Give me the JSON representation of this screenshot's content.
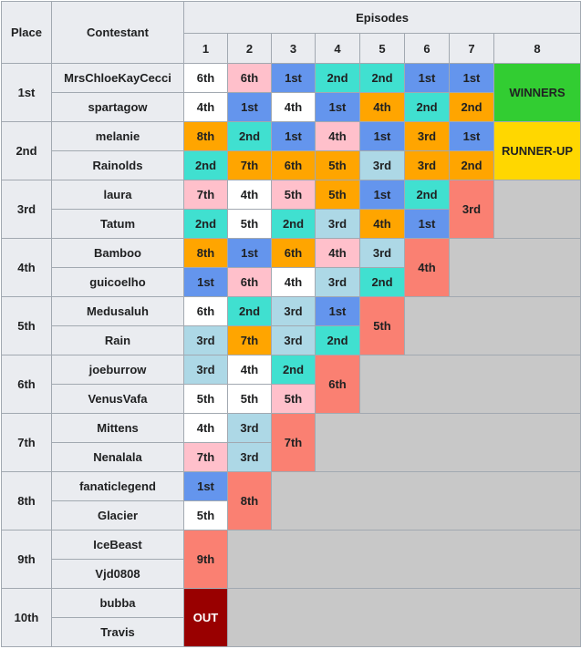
{
  "header": {
    "place": "Place",
    "contestant": "Contestant",
    "episodes": "Episodes",
    "episode_numbers": [
      "1",
      "2",
      "3",
      "4",
      "5",
      "6",
      "7",
      "8"
    ]
  },
  "groups": [
    {
      "place": "1st",
      "contestants": [
        {
          "name": "MrsChloeKayCecci",
          "results": [
            {
              "label": "6th",
              "color": "#ffffff"
            },
            {
              "label": "6th",
              "color": "#ffc0cb"
            },
            {
              "label": "1st",
              "color": "#6495ed"
            },
            {
              "label": "2nd",
              "color": "#40e0d0"
            },
            {
              "label": "2nd",
              "color": "#40e0d0"
            },
            {
              "label": "1st",
              "color": "#6495ed"
            },
            {
              "label": "1st",
              "color": "#6495ed"
            }
          ]
        },
        {
          "name": "spartagow",
          "results": [
            {
              "label": "4th",
              "color": "#ffffff"
            },
            {
              "label": "1st",
              "color": "#6495ed"
            },
            {
              "label": "4th",
              "color": "#ffffff"
            },
            {
              "label": "1st",
              "color": "#6495ed"
            },
            {
              "label": "4th",
              "color": "#ffa500"
            },
            {
              "label": "2nd",
              "color": "#40e0d0"
            },
            {
              "label": "2nd",
              "color": "#ffa500"
            }
          ]
        }
      ],
      "final": {
        "label": "WINNERS",
        "color": "#32cd32"
      }
    },
    {
      "place": "2nd",
      "contestants": [
        {
          "name": "melanie",
          "results": [
            {
              "label": "8th",
              "color": "#ffa500"
            },
            {
              "label": "2nd",
              "color": "#40e0d0"
            },
            {
              "label": "1st",
              "color": "#6495ed"
            },
            {
              "label": "4th",
              "color": "#ffc0cb"
            },
            {
              "label": "1st",
              "color": "#6495ed"
            },
            {
              "label": "3rd",
              "color": "#ffa500"
            },
            {
              "label": "1st",
              "color": "#6495ed"
            }
          ]
        },
        {
          "name": "Rainolds",
          "results": [
            {
              "label": "2nd",
              "color": "#40e0d0"
            },
            {
              "label": "7th",
              "color": "#ffa500"
            },
            {
              "label": "6th",
              "color": "#ffa500"
            },
            {
              "label": "5th",
              "color": "#ffa500"
            },
            {
              "label": "3rd",
              "color": "#add8e6"
            },
            {
              "label": "3rd",
              "color": "#ffa500"
            },
            {
              "label": "2nd",
              "color": "#ffa500"
            }
          ]
        }
      ],
      "final": {
        "label": "RUNNER-UP",
        "color": "#ffd700"
      }
    },
    {
      "place": "3rd",
      "contestants": [
        {
          "name": "laura",
          "results": [
            {
              "label": "7th",
              "color": "#ffc0cb"
            },
            {
              "label": "4th",
              "color": "#ffffff"
            },
            {
              "label": "5th",
              "color": "#ffc0cb"
            },
            {
              "label": "5th",
              "color": "#ffa500"
            },
            {
              "label": "1st",
              "color": "#6495ed"
            },
            {
              "label": "2nd",
              "color": "#40e0d0"
            }
          ]
        },
        {
          "name": "Tatum",
          "results": [
            {
              "label": "2nd",
              "color": "#40e0d0"
            },
            {
              "label": "5th",
              "color": "#ffffff"
            },
            {
              "label": "2nd",
              "color": "#40e0d0"
            },
            {
              "label": "3rd",
              "color": "#add8e6"
            },
            {
              "label": "4th",
              "color": "#ffa500"
            },
            {
              "label": "1st",
              "color": "#6495ed"
            }
          ]
        }
      ],
      "final": {
        "label": "3rd",
        "color": "#fa8072"
      }
    },
    {
      "place": "4th",
      "contestants": [
        {
          "name": "Bamboo",
          "results": [
            {
              "label": "8th",
              "color": "#ffa500"
            },
            {
              "label": "1st",
              "color": "#6495ed"
            },
            {
              "label": "6th",
              "color": "#ffa500"
            },
            {
              "label": "4th",
              "color": "#ffc0cb"
            },
            {
              "label": "3rd",
              "color": "#add8e6"
            }
          ]
        },
        {
          "name": "guicoelho",
          "results": [
            {
              "label": "1st",
              "color": "#6495ed"
            },
            {
              "label": "6th",
              "color": "#ffc0cb"
            },
            {
              "label": "4th",
              "color": "#ffffff"
            },
            {
              "label": "3rd",
              "color": "#add8e6"
            },
            {
              "label": "2nd",
              "color": "#40e0d0"
            }
          ]
        }
      ],
      "final": {
        "label": "4th",
        "color": "#fa8072"
      }
    },
    {
      "place": "5th",
      "contestants": [
        {
          "name": "Medusaluh",
          "results": [
            {
              "label": "6th",
              "color": "#ffffff"
            },
            {
              "label": "2nd",
              "color": "#40e0d0"
            },
            {
              "label": "3rd",
              "color": "#add8e6"
            },
            {
              "label": "1st",
              "color": "#6495ed"
            }
          ]
        },
        {
          "name": "Rain",
          "results": [
            {
              "label": "3rd",
              "color": "#add8e6"
            },
            {
              "label": "7th",
              "color": "#ffa500"
            },
            {
              "label": "3rd",
              "color": "#add8e6"
            },
            {
              "label": "2nd",
              "color": "#40e0d0"
            }
          ]
        }
      ],
      "final": {
        "label": "5th",
        "color": "#fa8072"
      }
    },
    {
      "place": "6th",
      "contestants": [
        {
          "name": "joeburrow",
          "results": [
            {
              "label": "3rd",
              "color": "#add8e6"
            },
            {
              "label": "4th",
              "color": "#ffffff"
            },
            {
              "label": "2nd",
              "color": "#40e0d0"
            }
          ]
        },
        {
          "name": "VenusVafa",
          "results": [
            {
              "label": "5th",
              "color": "#ffffff"
            },
            {
              "label": "5th",
              "color": "#ffffff"
            },
            {
              "label": "5th",
              "color": "#ffc0cb"
            }
          ]
        }
      ],
      "final": {
        "label": "6th",
        "color": "#fa8072"
      }
    },
    {
      "place": "7th",
      "contestants": [
        {
          "name": "Mittens",
          "results": [
            {
              "label": "4th",
              "color": "#ffffff"
            },
            {
              "label": "3rd",
              "color": "#add8e6"
            }
          ]
        },
        {
          "name": "Nenalala",
          "results": [
            {
              "label": "7th",
              "color": "#ffc0cb"
            },
            {
              "label": "3rd",
              "color": "#add8e6"
            }
          ]
        }
      ],
      "final": {
        "label": "7th",
        "color": "#fa8072"
      }
    },
    {
      "place": "8th",
      "contestants": [
        {
          "name": "fanaticlegend",
          "results": [
            {
              "label": "1st",
              "color": "#6495ed"
            }
          ]
        },
        {
          "name": "Glacier",
          "results": [
            {
              "label": "5th",
              "color": "#ffffff"
            }
          ]
        }
      ],
      "final": {
        "label": "8th",
        "color": "#fa8072"
      }
    },
    {
      "place": "9th",
      "contestants": [
        {
          "name": "IceBeast",
          "results": []
        },
        {
          "name": "Vjd0808",
          "results": []
        }
      ],
      "final": {
        "label": "9th",
        "color": "#fa8072"
      }
    },
    {
      "place": "10th",
      "contestants": [
        {
          "name": "bubba",
          "results": []
        },
        {
          "name": "Travis",
          "results": []
        }
      ],
      "final": {
        "label": "OUT",
        "color": "#990000"
      }
    }
  ]
}
